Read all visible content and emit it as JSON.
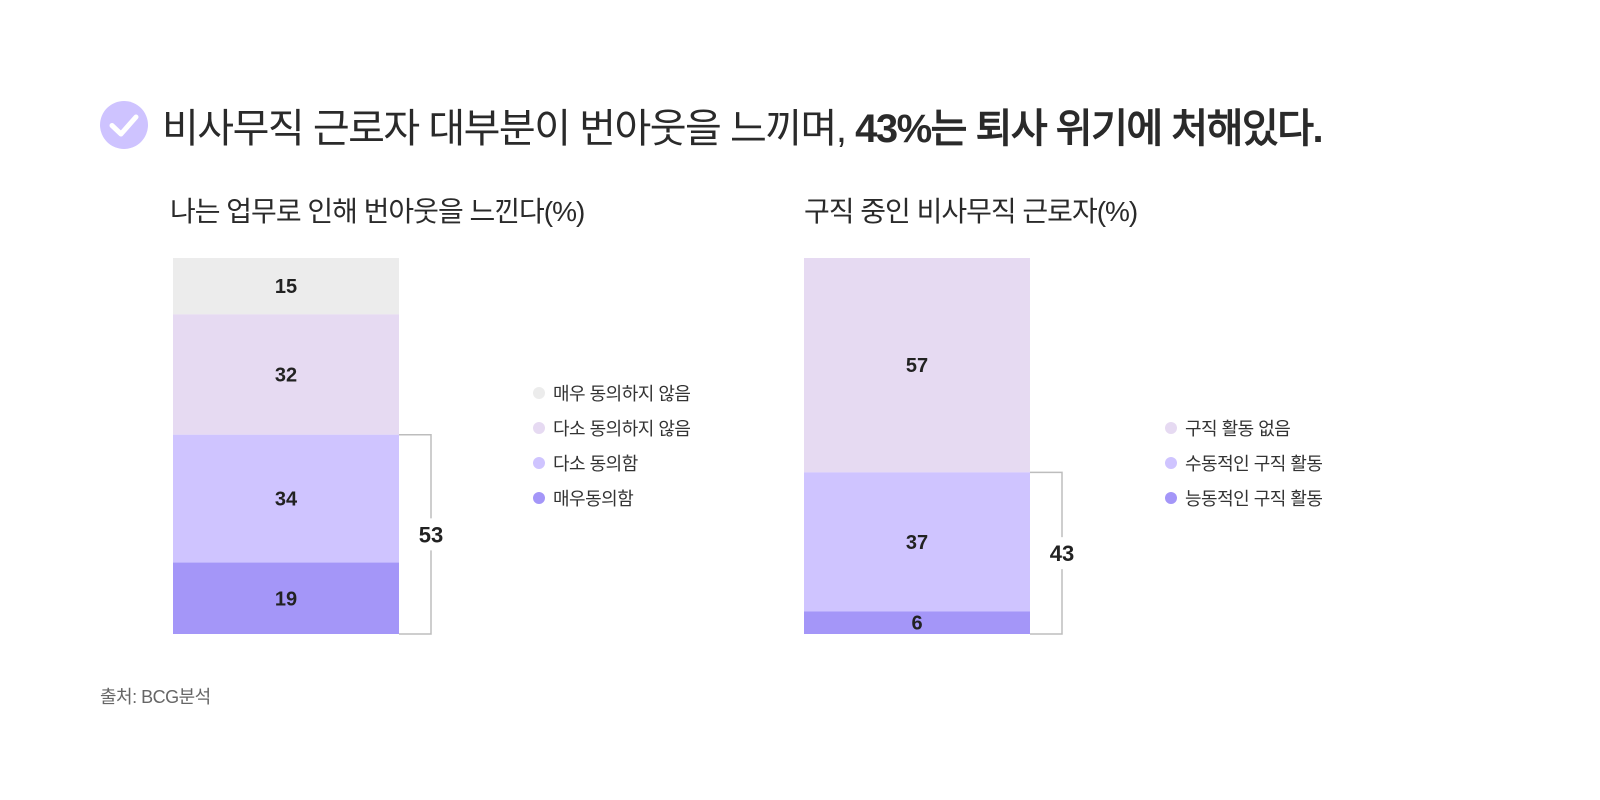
{
  "headline": {
    "normal": "비사무직 근로자 대부분이 번아웃을 느끼며, ",
    "bold": "43%는 퇴사 위기에 처해있다.",
    "icon": "check-circle-icon",
    "icon_color": "#CEC3FF"
  },
  "source": "출처: BCG분석",
  "chart_data": [
    {
      "type": "bar",
      "stacked": true,
      "title": "나는 업무로 인해 번아웃을 느낀다(%)",
      "series": [
        {
          "name": "매우 동의하지 않음",
          "value": 15,
          "color": "#ECECEC"
        },
        {
          "name": "다소 동의하지 않음",
          "value": 32,
          "color": "#E6DAF2"
        },
        {
          "name": "다소 동의함",
          "value": 34,
          "color": "#CFC4FF"
        },
        {
          "name": "매우동의함",
          "value": 19,
          "color": "#A496F8"
        }
      ],
      "bracket": {
        "value": "53",
        "covers": [
          "다소 동의함",
          "매우동의함"
        ]
      },
      "legend": [
        "매우 동의하지 않음",
        "다소 동의하지 않음",
        "다소 동의함",
        "매우동의함"
      ]
    },
    {
      "type": "bar",
      "stacked": true,
      "title": "구직 중인 비사무직 근로자(%)",
      "series": [
        {
          "name": "구직 활동 없음",
          "value": 57,
          "color": "#E6DAF2"
        },
        {
          "name": "수동적인 구직 활동",
          "value": 37,
          "color": "#CFC4FF"
        },
        {
          "name": "능동적인 구직 활동",
          "value": 6,
          "color": "#A496F8"
        }
      ],
      "bracket": {
        "value": "43",
        "covers": [
          "수동적인 구직 활동",
          "능동적인 구직 활동"
        ]
      },
      "legend": [
        "구직 활동 없음",
        "수동적인 구직 활동",
        "능동적인 구직 활동"
      ]
    }
  ]
}
